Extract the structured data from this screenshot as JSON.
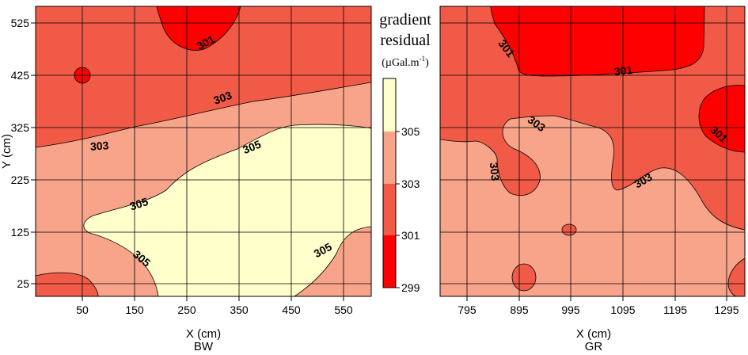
{
  "colors": {
    "band_299_301": "#ff0000",
    "band_301_303": "#f05a46",
    "band_303_305": "#f7a48a",
    "band_305_307": "#ffffcc"
  },
  "legend": {
    "title_line1": "gradient",
    "title_line2": "residual",
    "units": "(µGal.m",
    "units_sup": "-1",
    "units_close": ")",
    "levels": [
      "305",
      "303",
      "301",
      "299"
    ]
  },
  "chart_data": [
    {
      "type": "heatmap",
      "subtitle": "BW",
      "xlabel": "X (cm)",
      "ylabel": "Y (cm)",
      "xlim": [
        0,
        600
      ],
      "ylim": [
        0,
        555
      ],
      "xticks": [
        "50",
        "150",
        "250",
        "350",
        "450",
        "550"
      ],
      "yticks": [
        "25",
        "125",
        "225",
        "325",
        "425",
        "525"
      ],
      "grid": true,
      "contour_levels": [
        301,
        303,
        305
      ],
      "contour_labels": [
        "301",
        "303",
        "303",
        "305",
        "305",
        "305",
        "305"
      ]
    },
    {
      "type": "heatmap",
      "subtitle": "GR",
      "xlabel": "X (cm)",
      "ylabel": "",
      "xlim": [
        745,
        1335
      ],
      "ylim": [
        0,
        555
      ],
      "xticks": [
        "795",
        "895",
        "995",
        "1095",
        "1195",
        "1295"
      ],
      "yticks": [],
      "grid": true,
      "contour_levels": [
        301,
        303
      ],
      "contour_labels": [
        "301",
        "301",
        "301",
        "303",
        "303",
        "303"
      ]
    }
  ]
}
